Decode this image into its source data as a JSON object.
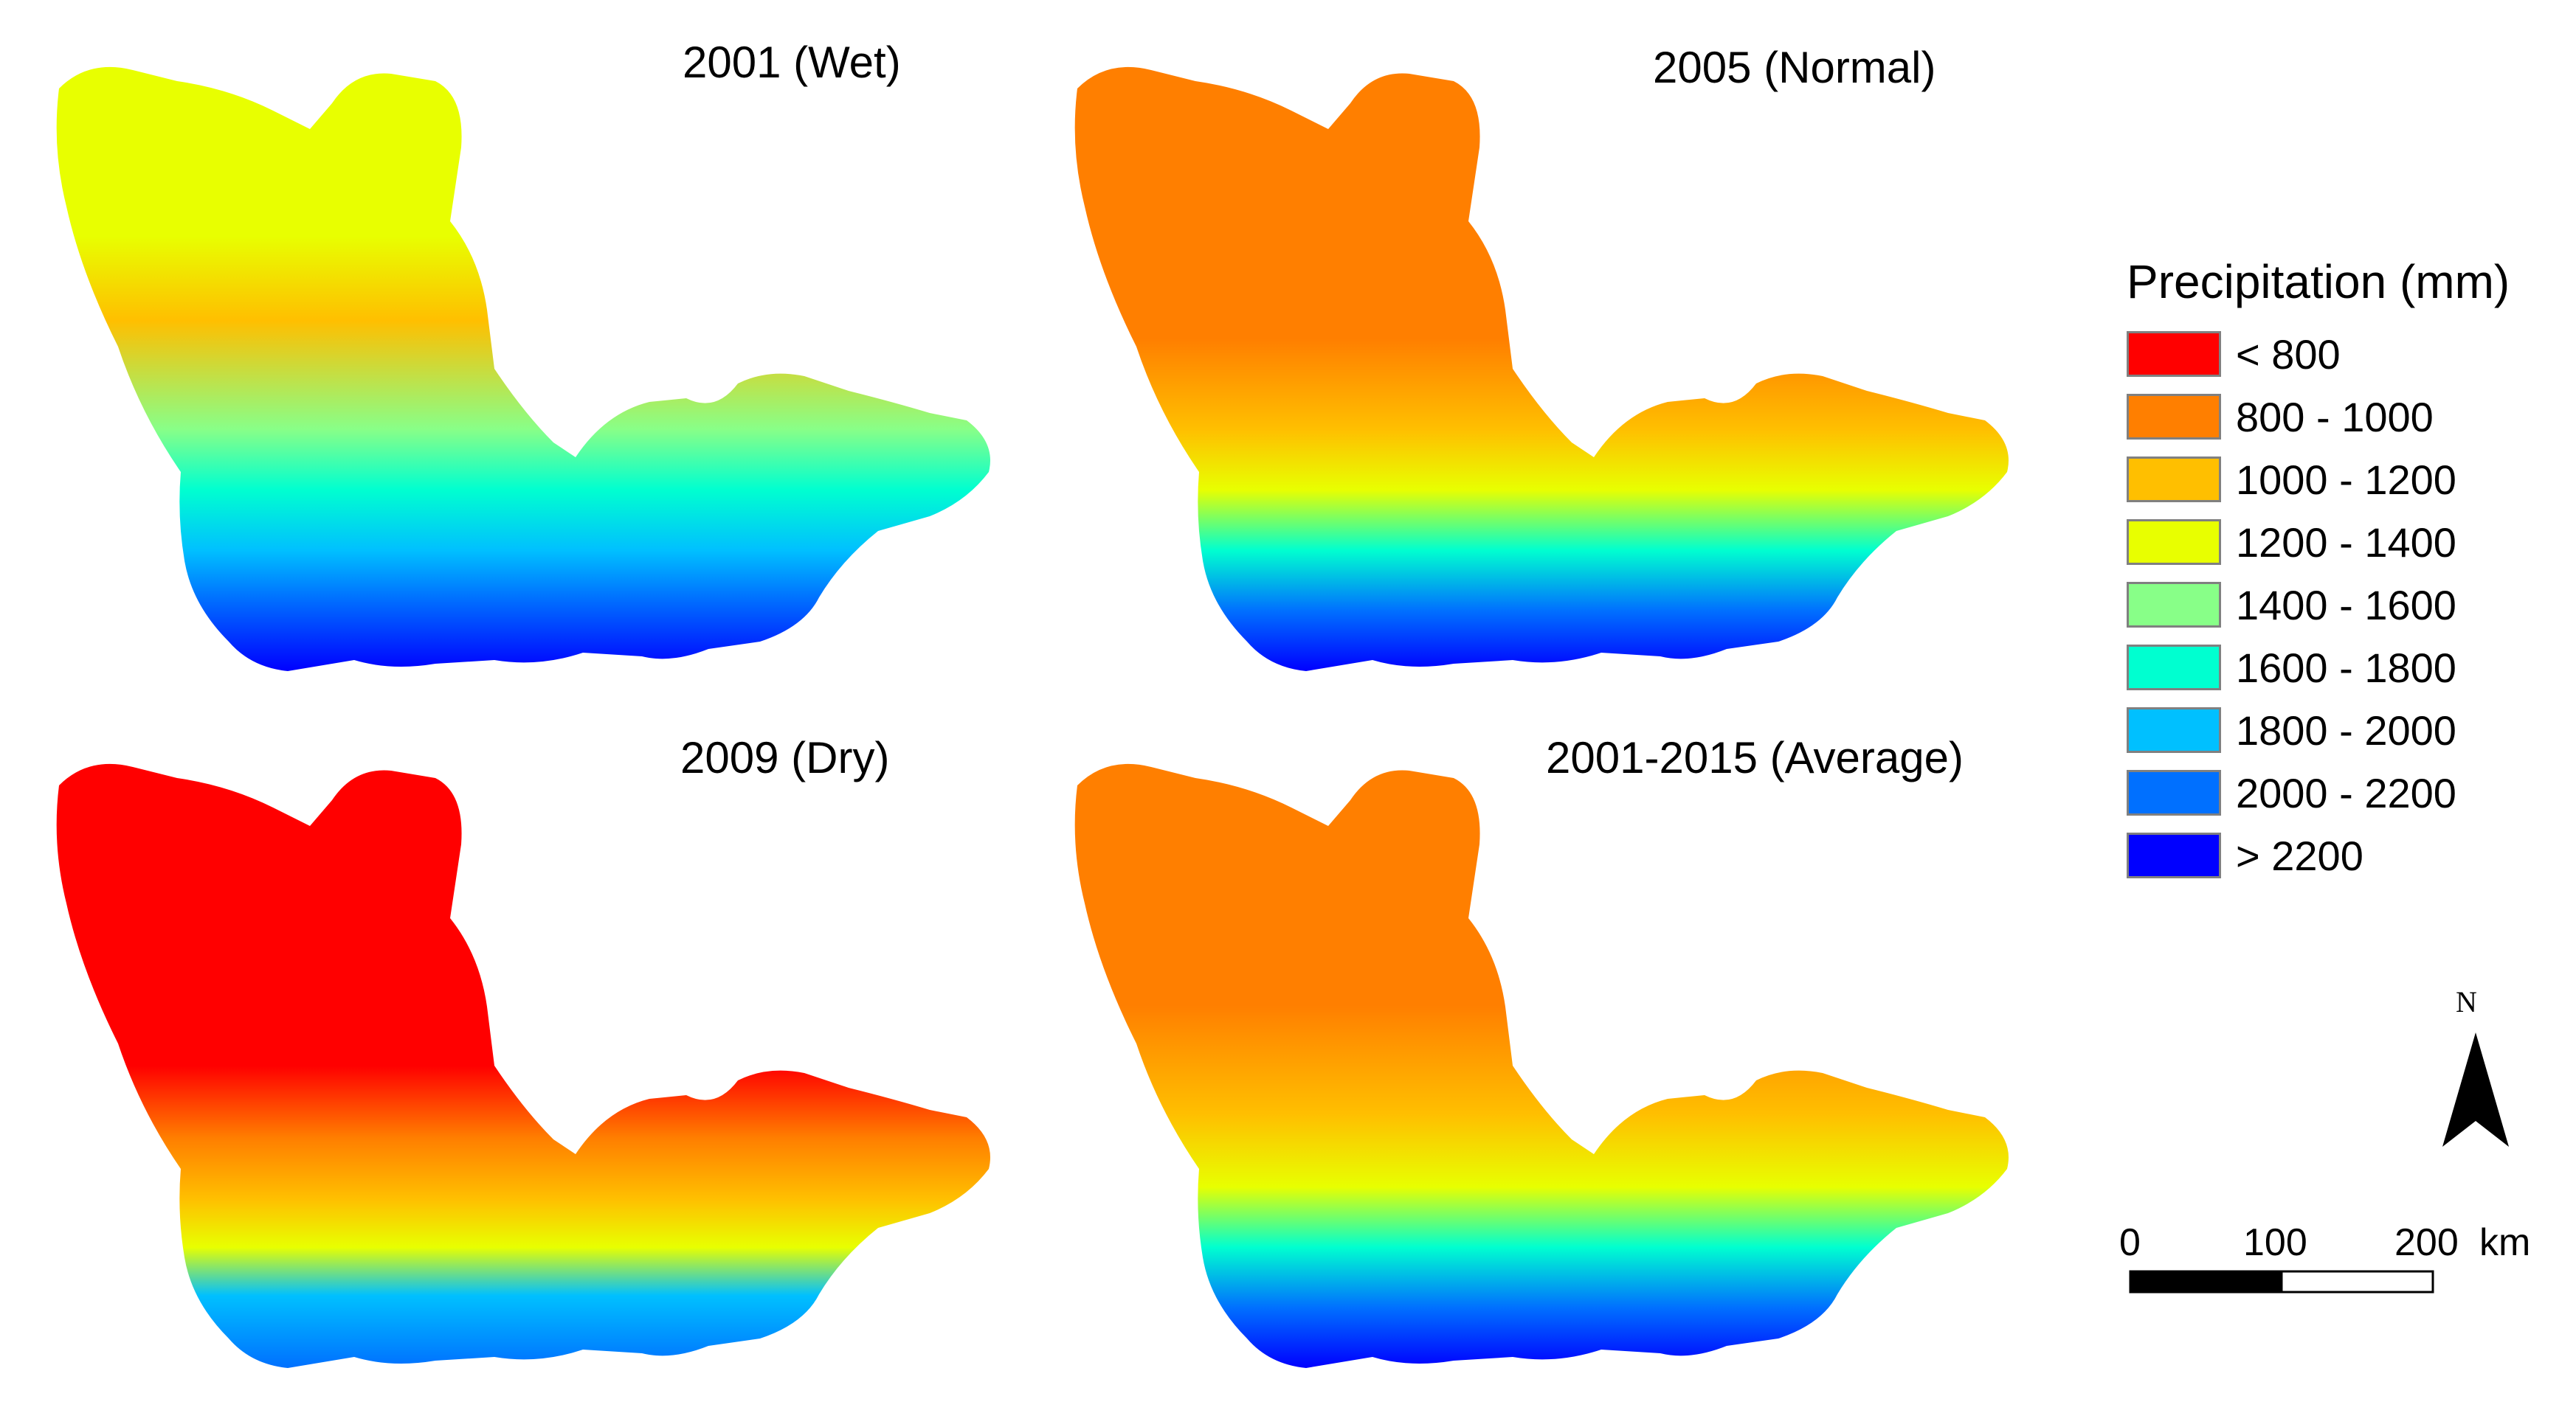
{
  "panels": [
    {
      "title": "2001 (Wet)"
    },
    {
      "title": "2005 (Normal)"
    },
    {
      "title": "2009 (Dry)"
    },
    {
      "title": "2001-2015 (Average)"
    }
  ],
  "legend": {
    "title": "Precipitation (mm)",
    "items": [
      {
        "label": "< 800",
        "color": "#ff0000"
      },
      {
        "label": "800 - 1000",
        "color": "#ff7f00"
      },
      {
        "label": "1000 - 1200",
        "color": "#ffbf00"
      },
      {
        "label": "1200 - 1400",
        "color": "#e8ff00"
      },
      {
        "label": "1400 - 1600",
        "color": "#88ff88"
      },
      {
        "label": "1600 - 1800",
        "color": "#00ffd0"
      },
      {
        "label": "1800 - 2000",
        "color": "#00c0ff"
      },
      {
        "label": "2000 - 2200",
        "color": "#0070ff"
      },
      {
        "label": "> 2200",
        "color": "#0000ff"
      }
    ]
  },
  "north_arrow": {
    "label": "N"
  },
  "scale_bar": {
    "labels": [
      "0",
      "100",
      "200"
    ],
    "unit": "km"
  }
}
